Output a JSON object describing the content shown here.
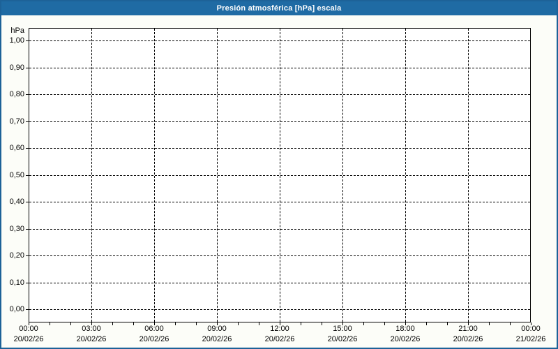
{
  "window": {
    "title": "Presión atmosférica [hPa] escala"
  },
  "colors": {
    "title_bar": "#1f6ba4",
    "frame_border": "#1d6298",
    "title_text": "#ffffff",
    "background": "#fcfdf8",
    "plot_background": "#ffffff",
    "axis_line": "#000000",
    "grid_line": "#000000",
    "label_text": "#000000"
  },
  "chart_data": {
    "type": "line",
    "title": "Presión atmosférica [hPa] escala",
    "ylabel": "hPa",
    "xlabel": "",
    "ylim": [
      -0.05,
      1.05
    ],
    "grid": "dashed",
    "legend_position": "none",
    "y_ticks": [
      {
        "value": 1.0,
        "label": "1,00"
      },
      {
        "value": 0.9,
        "label": "0,90"
      },
      {
        "value": 0.8,
        "label": "0,80"
      },
      {
        "value": 0.7,
        "label": "0,70"
      },
      {
        "value": 0.6,
        "label": "0,60"
      },
      {
        "value": 0.5,
        "label": "0,50"
      },
      {
        "value": 0.4,
        "label": "0,40"
      },
      {
        "value": 0.3,
        "label": "0,30"
      },
      {
        "value": 0.2,
        "label": "0,20"
      },
      {
        "value": 0.1,
        "label": "0,10"
      },
      {
        "value": 0.0,
        "label": "0,00"
      }
    ],
    "x_ticks": [
      {
        "time": "00:00",
        "date": "20/02/26"
      },
      {
        "time": "03:00",
        "date": "20/02/26"
      },
      {
        "time": "06:00",
        "date": "20/02/26"
      },
      {
        "time": "09:00",
        "date": "20/02/26"
      },
      {
        "time": "12:00",
        "date": "20/02/26"
      },
      {
        "time": "15:00",
        "date": "20/02/26"
      },
      {
        "time": "18:00",
        "date": "20/02/26"
      },
      {
        "time": "21:00",
        "date": "20/02/26"
      },
      {
        "time": "00:00",
        "date": "21/02/26"
      }
    ],
    "x_minor_ticks_per_major": 3,
    "series": []
  }
}
